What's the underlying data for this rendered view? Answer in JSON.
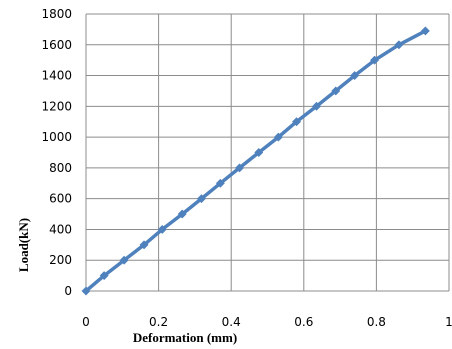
{
  "chart_data": {
    "type": "line",
    "xlabel": "Deformation (mm)",
    "ylabel": "Load(kN)",
    "xlim": [
      0,
      1
    ],
    "ylim": [
      0,
      1800
    ],
    "x_ticks": [
      0,
      0.2,
      0.4,
      0.6,
      0.8,
      1
    ],
    "x_tick_labels": [
      "0",
      "0.2",
      "0.4",
      "0.6",
      "0.8",
      "1"
    ],
    "y_ticks": [
      0,
      200,
      400,
      600,
      800,
      1000,
      1200,
      1400,
      1600,
      1800
    ],
    "y_tick_labels": [
      "0",
      "200",
      "400",
      "600",
      "800",
      "1000",
      "1200",
      "1400",
      "1600",
      "1800"
    ],
    "grid": true,
    "legend": "none",
    "series": [
      {
        "color": "#4f81bd",
        "marker": "diamond",
        "points": [
          {
            "x": 0.0,
            "y": 0
          },
          {
            "x": 0.05,
            "y": 100
          },
          {
            "x": 0.105,
            "y": 200
          },
          {
            "x": 0.16,
            "y": 300
          },
          {
            "x": 0.21,
            "y": 400
          },
          {
            "x": 0.265,
            "y": 500
          },
          {
            "x": 0.318,
            "y": 600
          },
          {
            "x": 0.37,
            "y": 700
          },
          {
            "x": 0.423,
            "y": 800
          },
          {
            "x": 0.476,
            "y": 900
          },
          {
            "x": 0.53,
            "y": 1000
          },
          {
            "x": 0.58,
            "y": 1100
          },
          {
            "x": 0.635,
            "y": 1200
          },
          {
            "x": 0.688,
            "y": 1300
          },
          {
            "x": 0.74,
            "y": 1400
          },
          {
            "x": 0.795,
            "y": 1500
          },
          {
            "x": 0.862,
            "y": 1600
          },
          {
            "x": 0.935,
            "y": 1690
          }
        ]
      }
    ]
  }
}
